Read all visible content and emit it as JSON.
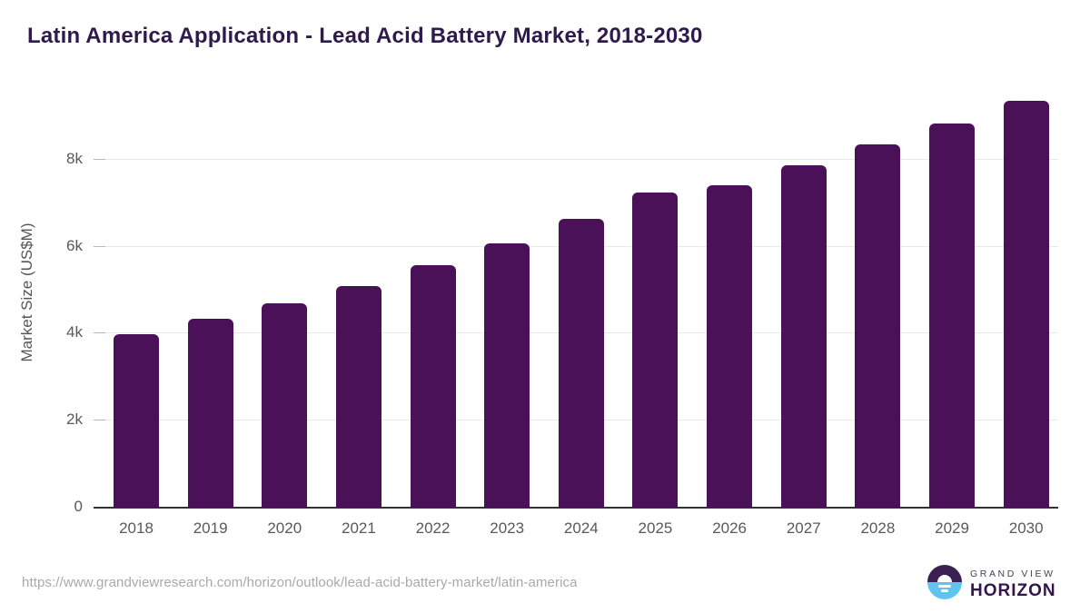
{
  "title": "Latin America Application - Lead Acid Battery Market, 2018-2030",
  "footer": {
    "url": "https://www.grandviewresearch.com/horizon/outlook/lead-acid-battery-market/latin-america",
    "brand_top": "GRAND VIEW",
    "brand_bottom": "HORIZON"
  },
  "colors": {
    "bar": "#4a1159",
    "title": "#2f1a4c",
    "gridline": "#e9e9e9",
    "axis_line": "#333333",
    "tick_label": "#595959",
    "axis_title": "#555555",
    "url_text": "#a9a9a9",
    "logo_top_half": "#3a2050",
    "logo_bottom_half": "#62c3f0",
    "brand_text": "#34154d"
  },
  "chart_data": {
    "type": "bar",
    "title": "Latin America Application - Lead Acid Battery Market, 2018-2030",
    "categories": [
      "2018",
      "2019",
      "2020",
      "2021",
      "2022",
      "2023",
      "2024",
      "2025",
      "2026",
      "2027",
      "2028",
      "2029",
      "2030"
    ],
    "values": [
      3990,
      4340,
      4700,
      5100,
      5580,
      6080,
      6630,
      7250,
      7410,
      7860,
      8350,
      8830,
      9350
    ],
    "xlabel": "",
    "ylabel": "Market Size (US$M)",
    "ytick_labels": [
      "0",
      "2k",
      "4k",
      "6k",
      "8k"
    ],
    "ytick_values": [
      0,
      2000,
      4000,
      6000,
      8000
    ],
    "ylim": [
      0,
      9600
    ],
    "grid": true,
    "legend": false,
    "bar_color": "#4a1159"
  }
}
